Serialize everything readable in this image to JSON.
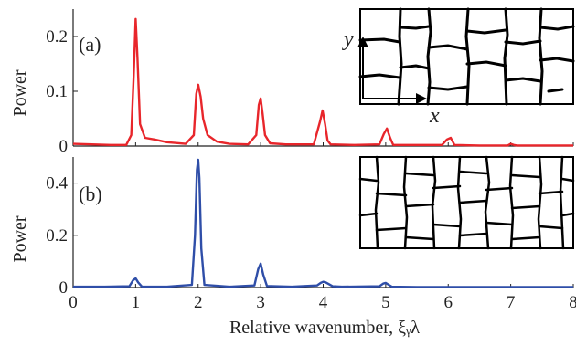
{
  "chart_data": [
    {
      "type": "line",
      "panel_label": "(a)",
      "ylabel": "Power",
      "xlabel": "",
      "xlim": [
        0,
        8
      ],
      "ylim": [
        0,
        0.25
      ],
      "yticks": [
        0,
        0.1,
        0.2
      ],
      "ytick_labels": [
        "0",
        "0.1",
        "0.2"
      ],
      "xticks": [
        0,
        1,
        2,
        3,
        4,
        5,
        6,
        7,
        8
      ],
      "xtick_labels": [],
      "grid": false,
      "series": [
        {
          "color": "#e8262b",
          "x": [
            0.0,
            0.3,
            0.6,
            0.85,
            0.93,
            0.97,
            1.0,
            1.03,
            1.07,
            1.15,
            1.3,
            1.5,
            1.8,
            1.93,
            1.97,
            2.0,
            2.04,
            2.08,
            2.15,
            2.3,
            2.5,
            2.8,
            2.93,
            2.97,
            3.0,
            3.03,
            3.07,
            3.15,
            3.4,
            3.85,
            3.95,
            3.99,
            4.03,
            4.07,
            4.12,
            4.5,
            4.9,
            4.97,
            5.02,
            5.07,
            5.12,
            5.5,
            5.9,
            5.98,
            6.04,
            6.1,
            6.5,
            6.95,
            7.0,
            7.05,
            7.1,
            7.5,
            8.0
          ],
          "y": [
            0.004,
            0.003,
            0.002,
            0.002,
            0.02,
            0.13,
            0.232,
            0.16,
            0.04,
            0.015,
            0.012,
            0.007,
            0.004,
            0.02,
            0.095,
            0.112,
            0.09,
            0.05,
            0.02,
            0.008,
            0.004,
            0.003,
            0.02,
            0.075,
            0.087,
            0.06,
            0.02,
            0.005,
            0.003,
            0.003,
            0.045,
            0.065,
            0.04,
            0.01,
            0.003,
            0.002,
            0.003,
            0.022,
            0.032,
            0.015,
            0.002,
            0.002,
            0.002,
            0.012,
            0.015,
            0.002,
            0.001,
            0.001,
            0.004,
            0.002,
            0.001,
            0.001,
            0.001
          ]
        }
      ],
      "inset_axis_labels": [
        "y",
        "x"
      ]
    },
    {
      "type": "line",
      "panel_label": "(b)",
      "ylabel": "Power",
      "xlabel": "Relative wavenumber, ξᵧλ",
      "xlim": [
        0,
        8
      ],
      "ylim": [
        0,
        0.5
      ],
      "yticks": [
        0,
        0.2,
        0.4
      ],
      "ytick_labels": [
        "0",
        "0.2",
        "0.4"
      ],
      "xticks": [
        0,
        1,
        2,
        3,
        4,
        5,
        6,
        7,
        8
      ],
      "xtick_labels": [
        "0",
        "1",
        "2",
        "3",
        "4",
        "5",
        "6",
        "7",
        "8"
      ],
      "grid": false,
      "series": [
        {
          "color": "#2f4ea8",
          "x": [
            0.0,
            0.5,
            0.9,
            0.96,
            1.0,
            1.04,
            1.1,
            1.5,
            1.9,
            1.95,
            1.98,
            2.0,
            2.02,
            2.05,
            2.1,
            2.5,
            2.9,
            2.96,
            3.0,
            3.04,
            3.1,
            3.5,
            3.9,
            3.96,
            4.0,
            4.04,
            4.1,
            4.15,
            4.3,
            4.9,
            4.96,
            5.0,
            5.04,
            5.1,
            5.5,
            6.0,
            6.5,
            7.0,
            8.0
          ],
          "y": [
            0.003,
            0.003,
            0.005,
            0.028,
            0.035,
            0.02,
            0.004,
            0.003,
            0.01,
            0.2,
            0.45,
            0.49,
            0.42,
            0.15,
            0.01,
            0.003,
            0.008,
            0.07,
            0.092,
            0.05,
            0.006,
            0.003,
            0.008,
            0.018,
            0.022,
            0.02,
            0.012,
            0.005,
            0.003,
            0.005,
            0.015,
            0.018,
            0.012,
            0.003,
            0.002,
            0.002,
            0.002,
            0.002,
            0.002
          ]
        }
      ]
    }
  ]
}
